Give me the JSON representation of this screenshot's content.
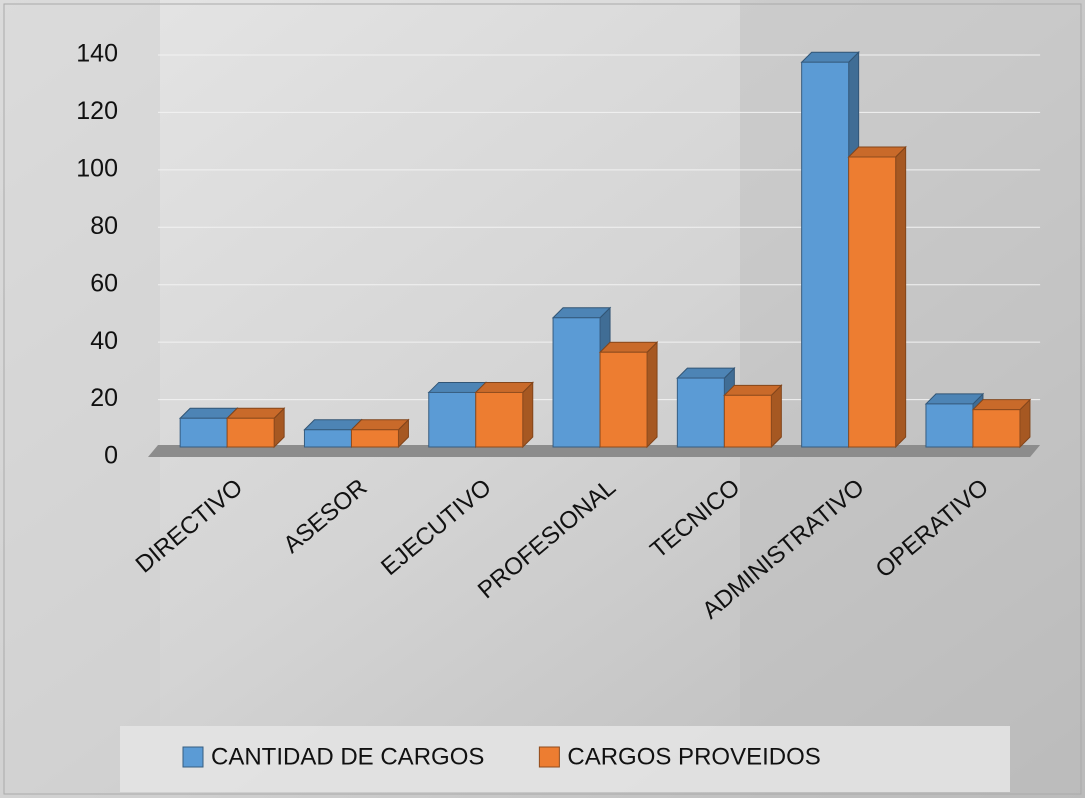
{
  "chart_data": {
    "type": "bar3d",
    "categories": [
      "DIRECTIVO",
      "ASESOR",
      "EJECUTIVO",
      "PROFESIONAL",
      "TECNICO",
      "ADMINISTRATIVO",
      "OPERATIVO"
    ],
    "series": [
      {
        "name": "CANTIDAD DE CARGOS",
        "color": "#5b9bd5",
        "values": [
          10,
          6,
          19,
          45,
          24,
          134,
          15
        ]
      },
      {
        "name": "CARGOS PROVEIDOS",
        "color": "#ed7d31",
        "values": [
          10,
          6,
          19,
          33,
          18,
          101,
          13
        ]
      }
    ],
    "ylim": [
      0,
      140
    ],
    "yticks": [
      0,
      20,
      40,
      60,
      80,
      100,
      120,
      140
    ],
    "grid": true,
    "legend": "bottom"
  }
}
